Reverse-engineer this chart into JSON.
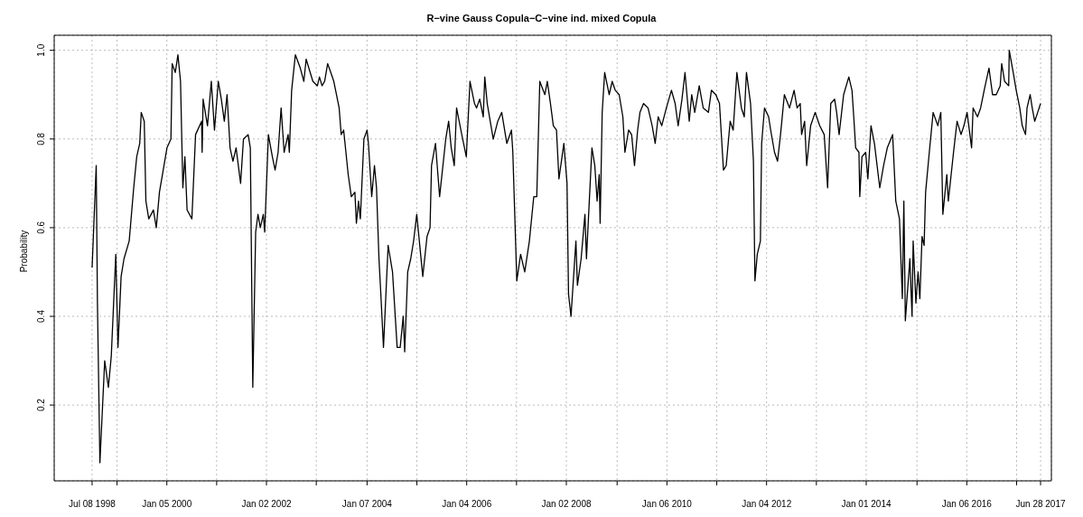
{
  "chart_data": {
    "type": "line",
    "title": "R−vine Gauss Copula−C−vine ind. mixed Copula",
    "ylabel": "Probability",
    "xlim": [
      "1997-10-04",
      "2017-09-15"
    ],
    "ylim": [
      0.029,
      1.034
    ],
    "xticks": [
      {
        "value": "1998-07-08",
        "label": "Jul 08 1998"
      },
      {
        "value": "1999-01-06",
        "label": null
      },
      {
        "value": "2000-01-05",
        "label": "Jan 05 2000"
      },
      {
        "value": "2001-01-03",
        "label": null
      },
      {
        "value": "2002-01-02",
        "label": "Jan 02 2002"
      },
      {
        "value": "2003-01-01",
        "label": null
      },
      {
        "value": "2004-01-07",
        "label": "Jan 07 2004"
      },
      {
        "value": "2005-01-05",
        "label": null
      },
      {
        "value": "2006-01-04",
        "label": "Jan 04 2006"
      },
      {
        "value": "2007-01-03",
        "label": null
      },
      {
        "value": "2008-01-02",
        "label": "Jan 02 2008"
      },
      {
        "value": "2009-01-07",
        "label": null
      },
      {
        "value": "2010-01-06",
        "label": "Jan 06 2010"
      },
      {
        "value": "2011-01-05",
        "label": null
      },
      {
        "value": "2012-01-04",
        "label": "Jan 04 2012"
      },
      {
        "value": "2013-01-02",
        "label": null
      },
      {
        "value": "2014-01-01",
        "label": "Jan 01 2014"
      },
      {
        "value": "2015-01-07",
        "label": null
      },
      {
        "value": "2016-01-06",
        "label": "Jan 06 2016"
      },
      {
        "value": "2017-01-04",
        "label": null
      },
      {
        "value": "2017-06-28",
        "label": "Jun 28 2017"
      }
    ],
    "yticks": [
      0.2,
      0.4,
      0.6,
      0.8,
      {
        "value": 1,
        "label": "1.0"
      }
    ],
    "grid": true,
    "marker": "none",
    "line_style": "solid",
    "x": [
      "1998-07-08",
      "1998-08-07",
      "1998-08-16",
      "1998-09-03",
      "1998-10-08",
      "1998-11-04",
      "1998-11-25",
      "1998-12-28",
      "1999-01-13",
      "1999-02-05",
      "1999-02-26",
      "1999-04-05",
      "1999-05-08",
      "1999-05-30",
      "1999-06-21",
      "1999-07-02",
      "1999-07-24",
      "1999-08-05",
      "1999-08-26",
      "1999-09-29",
      "1999-10-20",
      "1999-11-12",
      "1999-12-04",
      "2000-01-06",
      "2000-02-04",
      "2000-02-13",
      "2000-03-07",
      "2000-03-26",
      "2000-04-14",
      "2000-05-01",
      "2000-05-16",
      "2000-06-01",
      "2000-07-06",
      "2000-08-02",
      "2000-09-15",
      "2000-09-19",
      "2000-09-26",
      "2000-10-28",
      "2000-11-25",
      "2000-12-18",
      "2001-01-15",
      "2001-02-06",
      "2001-02-28",
      "2001-03-20",
      "2001-04-11",
      "2001-05-02",
      "2001-05-25",
      "2001-06-27",
      "2001-07-18",
      "2001-08-21",
      "2001-09-06",
      "2001-09-24",
      "2001-10-15",
      "2001-11-01",
      "2001-11-18",
      "2001-12-10",
      "2001-12-20",
      "2002-01-16",
      "2002-02-14",
      "2002-03-06",
      "2002-03-28",
      "2002-04-19",
      "2002-05-11",
      "2002-06-09",
      "2002-06-18",
      "2002-07-05",
      "2002-08-01",
      "2002-09-06",
      "2002-10-02",
      "2002-10-19",
      "2002-12-07",
      "2003-01-09",
      "2003-01-24",
      "2003-02-12",
      "2003-03-03",
      "2003-03-25",
      "2003-04-17",
      "2003-05-09",
      "2003-06-17",
      "2003-07-02",
      "2003-07-20",
      "2003-08-22",
      "2003-09-14",
      "2003-10-10",
      "2003-10-21",
      "2003-11-06",
      "2003-11-19",
      "2003-12-15",
      "2004-01-07",
      "2004-01-17",
      "2004-02-10",
      "2004-03-01",
      "2004-03-16",
      "2004-04-03",
      "2004-04-15",
      "2004-05-06",
      "2004-06-09",
      "2004-07-11",
      "2004-08-14",
      "2004-09-05",
      "2004-09-27",
      "2004-10-08",
      "2004-10-30",
      "2004-11-21",
      "2004-12-12",
      "2005-01-04",
      "2005-02-17",
      "2005-03-20",
      "2005-04-11",
      "2005-04-22",
      "2005-05-21",
      "2005-06-20",
      "2005-08-04",
      "2005-08-25",
      "2005-09-13",
      "2005-10-05",
      "2005-10-22",
      "2005-11-29",
      "2006-01-01",
      "2006-01-28",
      "2006-03-02",
      "2006-03-17",
      "2006-04-09",
      "2006-05-05",
      "2006-05-16",
      "2006-06-03",
      "2006-07-17",
      "2006-08-19",
      "2006-09-17",
      "2006-10-24",
      "2006-11-27",
      "2006-12-07",
      "2007-01-05",
      "2007-02-02",
      "2007-03-04",
      "2007-04-07",
      "2007-05-09",
      "2007-05-31",
      "2007-06-22",
      "2007-07-29",
      "2007-08-16",
      "2007-09-08",
      "2007-09-29",
      "2007-10-22",
      "2007-11-09",
      "2007-12-15",
      "2008-01-07",
      "2008-01-18",
      "2008-02-05",
      "2008-03-12",
      "2008-03-23",
      "2008-04-19",
      "2008-05-17",
      "2008-05-28",
      "2008-07-07",
      "2008-07-28",
      "2008-08-14",
      "2008-08-29",
      "2008-09-05",
      "2008-09-20",
      "2008-10-08",
      "2008-11-10",
      "2008-12-02",
      "2008-12-24",
      "2009-01-22",
      "2009-02-18",
      "2009-03-05",
      "2009-04-01",
      "2009-04-23",
      "2009-05-14",
      "2009-06-06",
      "2009-06-23",
      "2009-07-19",
      "2009-08-21",
      "2009-09-20",
      "2009-10-12",
      "2009-11-03",
      "2009-11-29",
      "2010-01-02",
      "2010-02-08",
      "2010-03-07",
      "2010-03-29",
      "2010-04-26",
      "2010-05-18",
      "2010-06-18",
      "2010-07-06",
      "2010-07-28",
      "2010-08-30",
      "2010-09-28",
      "2010-11-05",
      "2010-11-27",
      "2010-12-29",
      "2011-01-25",
      "2011-02-23",
      "2011-03-15",
      "2011-04-13",
      "2011-05-05",
      "2011-06-01",
      "2011-07-04",
      "2011-07-25",
      "2011-08-10",
      "2011-09-09",
      "2011-09-30",
      "2011-10-11",
      "2011-10-28",
      "2011-11-20",
      "2011-11-29",
      "2011-12-20",
      "2012-01-19",
      "2012-02-03",
      "2012-03-02",
      "2012-03-24",
      "2012-04-15",
      "2012-05-13",
      "2012-06-20",
      "2012-07-23",
      "2012-08-14",
      "2012-09-06",
      "2012-09-16",
      "2012-10-08",
      "2012-10-23",
      "2012-11-21",
      "2012-12-24",
      "2013-01-26",
      "2013-02-28",
      "2013-03-25",
      "2013-04-17",
      "2013-05-15",
      "2013-05-30",
      "2013-06-17",
      "2013-07-20",
      "2013-08-27",
      "2013-09-19",
      "2013-10-02",
      "2013-10-16",
      "2013-11-09",
      "2013-11-15",
      "2013-12-01",
      "2013-12-28",
      "2014-01-13",
      "2014-02-05",
      "2014-03-02",
      "2014-04-10",
      "2014-05-08",
      "2014-06-04",
      "2014-07-13",
      "2014-08-05",
      "2014-09-01",
      "2014-09-22",
      "2014-10-03",
      "2014-10-14",
      "2014-11-16",
      "2014-12-02",
      "2014-12-10",
      "2014-12-30",
      "2015-01-15",
      "2015-01-28",
      "2015-02-13",
      "2015-02-28",
      "2015-03-11",
      "2015-04-07",
      "2015-05-05",
      "2015-06-08",
      "2015-06-30",
      "2015-07-15",
      "2015-08-13",
      "2015-08-24",
      "2015-10-01",
      "2015-10-27",
      "2015-11-25",
      "2015-12-16",
      "2016-01-08",
      "2016-02-10",
      "2016-02-21",
      "2016-03-24",
      "2016-04-16",
      "2016-05-12",
      "2016-06-16",
      "2016-07-12",
      "2016-08-08",
      "2016-09-06",
      "2016-09-17",
      "2016-10-08",
      "2016-11-07",
      "2016-11-11",
      "2016-12-10",
      "2017-01-01",
      "2017-01-27",
      "2017-02-14",
      "2017-03-10",
      "2017-03-21",
      "2017-04-13",
      "2017-04-28",
      "2017-05-16",
      "2017-06-07",
      "2017-06-28"
    ],
    "series": [
      {
        "color": "#000000",
        "values": [
          0.51,
          0.74,
          0.43,
          0.07,
          0.3,
          0.24,
          0.31,
          0.54,
          0.33,
          0.49,
          0.53,
          0.57,
          0.69,
          0.76,
          0.79,
          0.86,
          0.84,
          0.66,
          0.62,
          0.64,
          0.6,
          0.68,
          0.72,
          0.78,
          0.8,
          0.97,
          0.95,
          0.99,
          0.93,
          0.69,
          0.76,
          0.64,
          0.62,
          0.81,
          0.84,
          0.77,
          0.89,
          0.83,
          0.93,
          0.82,
          0.93,
          0.89,
          0.84,
          0.9,
          0.78,
          0.75,
          0.78,
          0.7,
          0.8,
          0.81,
          0.78,
          0.24,
          0.59,
          0.63,
          0.6,
          0.63,
          0.59,
          0.81,
          0.76,
          0.73,
          0.77,
          0.87,
          0.77,
          0.81,
          0.77,
          0.91,
          0.99,
          0.96,
          0.93,
          0.98,
          0.93,
          0.92,
          0.94,
          0.92,
          0.93,
          0.97,
          0.95,
          0.93,
          0.87,
          0.81,
          0.82,
          0.72,
          0.67,
          0.68,
          0.61,
          0.66,
          0.62,
          0.8,
          0.82,
          0.79,
          0.67,
          0.74,
          0.69,
          0.53,
          0.46,
          0.33,
          0.56,
          0.5,
          0.33,
          0.33,
          0.4,
          0.32,
          0.5,
          0.53,
          0.57,
          0.63,
          0.49,
          0.58,
          0.6,
          0.74,
          0.79,
          0.67,
          0.8,
          0.84,
          0.78,
          0.74,
          0.87,
          0.81,
          0.76,
          0.93,
          0.88,
          0.87,
          0.89,
          0.85,
          0.94,
          0.88,
          0.8,
          0.84,
          0.86,
          0.79,
          0.82,
          0.77,
          0.48,
          0.54,
          0.5,
          0.57,
          0.67,
          0.67,
          0.93,
          0.9,
          0.93,
          0.88,
          0.83,
          0.82,
          0.71,
          0.79,
          0.7,
          0.45,
          0.4,
          0.57,
          0.47,
          0.53,
          0.63,
          0.53,
          0.78,
          0.74,
          0.66,
          0.72,
          0.61,
          0.86,
          0.95,
          0.9,
          0.93,
          0.91,
          0.9,
          0.85,
          0.77,
          0.82,
          0.81,
          0.74,
          0.82,
          0.86,
          0.88,
          0.87,
          0.83,
          0.79,
          0.85,
          0.83,
          0.87,
          0.91,
          0.88,
          0.83,
          0.89,
          0.95,
          0.84,
          0.9,
          0.86,
          0.92,
          0.87,
          0.86,
          0.91,
          0.9,
          0.88,
          0.73,
          0.74,
          0.84,
          0.82,
          0.95,
          0.87,
          0.85,
          0.95,
          0.88,
          0.75,
          0.48,
          0.54,
          0.57,
          0.79,
          0.87,
          0.85,
          0.82,
          0.77,
          0.75,
          0.81,
          0.9,
          0.87,
          0.91,
          0.87,
          0.88,
          0.81,
          0.84,
          0.74,
          0.83,
          0.86,
          0.83,
          0.81,
          0.69,
          0.88,
          0.89,
          0.86,
          0.81,
          0.9,
          0.94,
          0.91,
          0.85,
          0.78,
          0.77,
          0.67,
          0.76,
          0.77,
          0.71,
          0.83,
          0.79,
          0.69,
          0.74,
          0.78,
          0.81,
          0.66,
          0.62,
          0.44,
          0.66,
          0.39,
          0.53,
          0.4,
          0.57,
          0.43,
          0.5,
          0.44,
          0.58,
          0.56,
          0.68,
          0.77,
          0.86,
          0.83,
          0.86,
          0.63,
          0.72,
          0.66,
          0.77,
          0.84,
          0.81,
          0.83,
          0.86,
          0.78,
          0.87,
          0.85,
          0.87,
          0.91,
          0.96,
          0.9,
          0.9,
          0.92,
          0.97,
          0.93,
          0.92,
          1.0,
          0.95,
          0.91,
          0.87,
          0.83,
          0.81,
          0.87,
          0.9,
          0.87,
          0.84,
          0.86,
          0.88
        ]
      }
    ]
  }
}
